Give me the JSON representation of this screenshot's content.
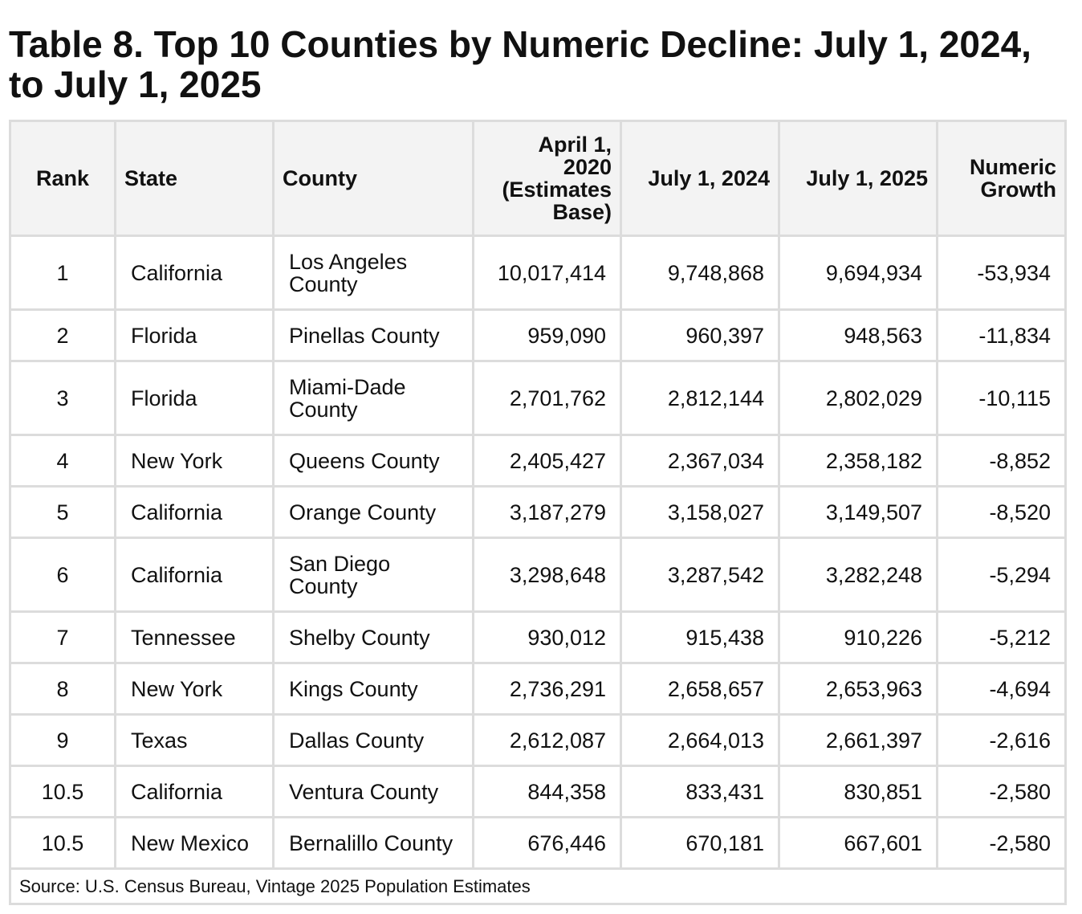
{
  "title": "Table 8. Top 10 Counties by Numeric Decline: July 1, 2024, to July 1, 2025",
  "columns": {
    "rank": "Rank",
    "state": "State",
    "county": "County",
    "base": "April 1, 2020 (Estimates Base)",
    "july2024": "July 1, 2024",
    "july2025": "July 1, 2025",
    "growth": "Numeric Growth"
  },
  "rows": [
    {
      "rank": "1",
      "state": "California",
      "county": "Los Angeles County",
      "base": "10,017,414",
      "july2024": "9,748,868",
      "july2025": "9,694,934",
      "growth": "-53,934"
    },
    {
      "rank": "2",
      "state": "Florida",
      "county": "Pinellas County",
      "base": "959,090",
      "july2024": "960,397",
      "july2025": "948,563",
      "growth": "-11,834"
    },
    {
      "rank": "3",
      "state": "Florida",
      "county": "Miami-Dade County",
      "base": "2,701,762",
      "july2024": "2,812,144",
      "july2025": "2,802,029",
      "growth": "-10,115"
    },
    {
      "rank": "4",
      "state": "New York",
      "county": "Queens County",
      "base": "2,405,427",
      "july2024": "2,367,034",
      "july2025": "2,358,182",
      "growth": "-8,852"
    },
    {
      "rank": "5",
      "state": "California",
      "county": "Orange County",
      "base": "3,187,279",
      "july2024": "3,158,027",
      "july2025": "3,149,507",
      "growth": "-8,520"
    },
    {
      "rank": "6",
      "state": "California",
      "county": "San Diego County",
      "base": "3,298,648",
      "july2024": "3,287,542",
      "july2025": "3,282,248",
      "growth": "-5,294"
    },
    {
      "rank": "7",
      "state": "Tennessee",
      "county": "Shelby County",
      "base": "930,012",
      "july2024": "915,438",
      "july2025": "910,226",
      "growth": "-5,212"
    },
    {
      "rank": "8",
      "state": "New York",
      "county": "Kings County",
      "base": "2,736,291",
      "july2024": "2,658,657",
      "july2025": "2,653,963",
      "growth": "-4,694"
    },
    {
      "rank": "9",
      "state": "Texas",
      "county": "Dallas County",
      "base": "2,612,087",
      "july2024": "2,664,013",
      "july2025": "2,661,397",
      "growth": "-2,616"
    },
    {
      "rank": "10.5",
      "state": "California",
      "county": "Ventura County",
      "base": "844,358",
      "july2024": "833,431",
      "july2025": "830,851",
      "growth": "-2,580"
    },
    {
      "rank": "10.5",
      "state": "New Mexico",
      "county": "Bernalillo County",
      "base": "676,446",
      "july2024": "670,181",
      "july2025": "667,601",
      "growth": "-2,580"
    }
  ],
  "source": "Source: U.S. Census Bureau, Vintage 2025 Population Estimates",
  "colors": {
    "header_bg": "#f3f3f3",
    "border": "#dcdcdc",
    "text": "#111111"
  }
}
